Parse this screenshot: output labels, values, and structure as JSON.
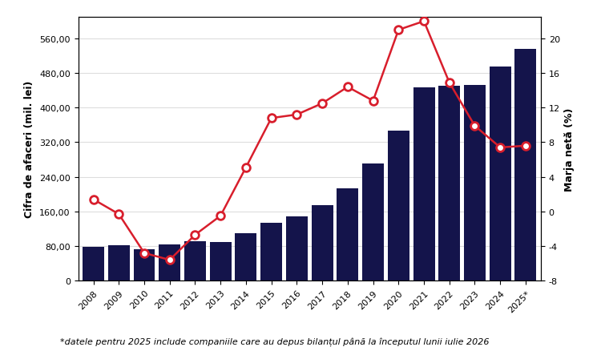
{
  "chart_data": {
    "type": "bar",
    "y_label": "Cifra de afaceri (mil. lei)",
    "y2_label": "Marja netă (%)",
    "note": "*datele pentru 2025 include companiile care au depus bilanțul până la începutul lunii iulie 2026",
    "categories": [
      "2008",
      "2009",
      "2010",
      "2011",
      "2012",
      "2013",
      "2014",
      "2015",
      "2016",
      "2017",
      "2018",
      "2019",
      "2020",
      "2021",
      "2022",
      "2023",
      "2024",
      "2025*"
    ],
    "series": [
      {
        "type": "bar",
        "color": "#14144b",
        "values": [
          78,
          81,
          73,
          83,
          92,
          89,
          109,
          133,
          149,
          175,
          214,
          271,
          346,
          446,
          451,
          453,
          495,
          536
        ]
      },
      {
        "type": "line",
        "axis": "y2",
        "color": "#d81e2c",
        "marker": "o",
        "line_style": "solid",
        "values": [
          1.4,
          -0.3,
          -4.8,
          -5.6,
          -2.7,
          -0.5,
          5.1,
          10.8,
          11.2,
          12.5,
          14.4,
          12.8,
          21.0,
          22.0,
          14.9,
          9.9,
          7.4,
          7.6
        ]
      }
    ],
    "ylim": [
      0,
      610
    ],
    "yticks": [
      0,
      {
        "value": 80,
        "label": "80,00"
      },
      {
        "value": 160,
        "label": "160,00"
      },
      {
        "value": 240,
        "label": "240,00"
      },
      {
        "value": 320,
        "label": "320,00"
      },
      {
        "value": 400,
        "label": "400,00"
      },
      {
        "value": 480,
        "label": "480,00"
      },
      {
        "value": 560,
        "label": "560,00"
      }
    ],
    "y2lim": [
      -8,
      22.5
    ],
    "y2ticks": [
      -8,
      -4,
      0,
      4,
      8,
      12,
      16,
      20
    ],
    "grid": true
  }
}
